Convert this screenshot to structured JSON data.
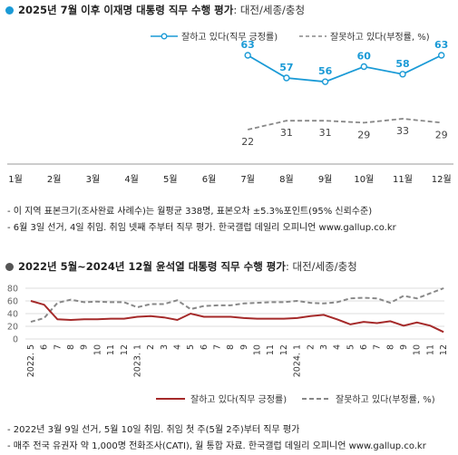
{
  "panel1": {
    "title_main": "2025년 7월 이후 이재명 대통령 직무 수행 평가",
    "title_sub": ": 대전/세종/충청",
    "dot_color": "#1a9ad6",
    "notes": [
      "- 이 지역 표본크기(조사완료 사례수)는 월평균 338명, 표본오차 ±5.3%포인트(95% 신뢰수준)",
      "- 6월 3일 선거, 4일 취임. 취임 넷째 주부터 직무 평가. 한국갤럽 데일리 오피니언 www.gallup.co.kr"
    ]
  },
  "panel2": {
    "title_main": "2022년 5월~2024년 12월 윤석열 대통령 직무 수행 평가",
    "title_sub": ": 대전/세종/충청",
    "dot_color": "#555555",
    "notes": [
      "- 2022년 3월 9일 선거, 5월 10일 취임. 취임 첫 주(5월 2주)부터 직무 평가",
      "- 매주 전국 유권자 약 1,000명 전화조사(CATI), 월 통합 자료. 한국갤럽 데일리 오피니언 www.gallup.co.kr"
    ]
  },
  "chart_data": [
    {
      "type": "line",
      "categories": [
        "1월",
        "2월",
        "3월",
        "4월",
        "5월",
        "6월",
        "7월",
        "8월",
        "9월",
        "10월",
        "11월",
        "12월"
      ],
      "series": [
        {
          "name": "잘하고 있다(직무 긍정률)",
          "color": "#1a9ad6",
          "style": "solid",
          "values": [
            null,
            null,
            null,
            null,
            null,
            null,
            63,
            57,
            56,
            60,
            58,
            63
          ]
        },
        {
          "name": "잘못하고 있다(부정률, %)",
          "color": "#888888",
          "style": "dashed",
          "values": [
            null,
            null,
            null,
            null,
            null,
            null,
            22,
            31,
            31,
            29,
            33,
            29
          ]
        }
      ],
      "data_labels": true,
      "legend": "top-right"
    },
    {
      "type": "line",
      "categories": [
        "2022. 5",
        "6",
        "7",
        "8",
        "9",
        "10",
        "11",
        "12",
        "2023. 1",
        "2",
        "3",
        "4",
        "5",
        "6",
        "7",
        "8",
        "9",
        "10",
        "11",
        "12",
        "2024. 1",
        "2",
        "3",
        "4",
        "5",
        "6",
        "7",
        "8",
        "9",
        "10",
        "11",
        "12"
      ],
      "ylim": [
        0,
        80
      ],
      "yticks": [
        0,
        20,
        40,
        60,
        80
      ],
      "series": [
        {
          "name": "잘하고 있다(직무 긍정률)",
          "color": "#a52a2a",
          "style": "solid",
          "values": [
            60,
            54,
            31,
            30,
            31,
            31,
            32,
            32,
            35,
            36,
            34,
            30,
            40,
            35,
            35,
            35,
            33,
            32,
            32,
            32,
            33,
            36,
            38,
            31,
            23,
            27,
            25,
            28,
            21,
            26,
            21,
            11
          ]
        },
        {
          "name": "잘못하고 있다(부정률, %)",
          "color": "#888888",
          "style": "dashed",
          "values": [
            27,
            33,
            57,
            62,
            58,
            59,
            58,
            58,
            50,
            55,
            55,
            61,
            47,
            52,
            53,
            53,
            56,
            57,
            58,
            58,
            60,
            57,
            56,
            58,
            64,
            65,
            64,
            57,
            68,
            64,
            72,
            80
          ]
        }
      ],
      "legend": "bottom",
      "grid": true
    }
  ]
}
